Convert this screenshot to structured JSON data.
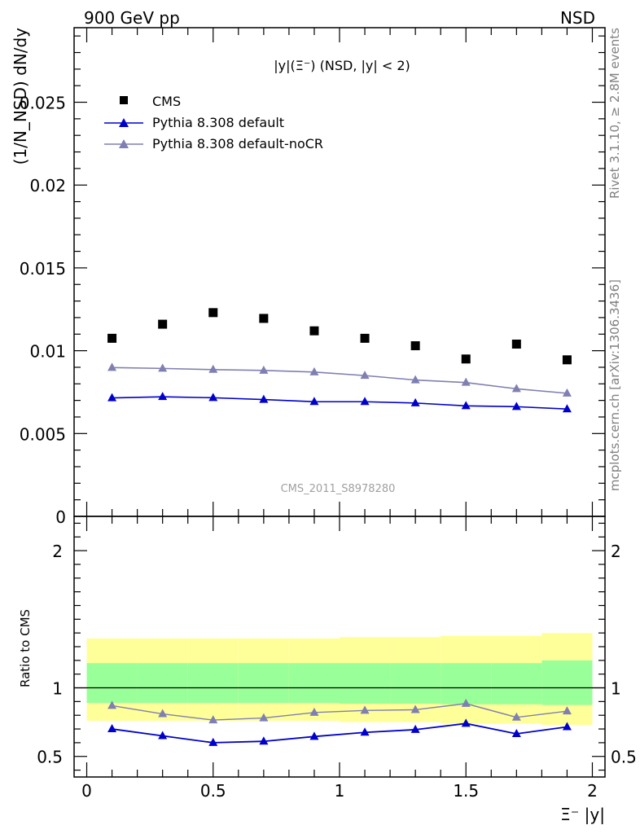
{
  "header": {
    "left": "900 GeV pp",
    "right": "NSD"
  },
  "side_text": {
    "rivet": "Rivet 3.1.10, ≥ 2.8M events",
    "mcplots": "mcplots.cern.ch [arXiv:1306.3436]"
  },
  "watermark": "CMS_2011_S8978280",
  "colors": {
    "cms": "#000000",
    "pythia_default": "#0000cc",
    "pythia_nocr": "#7f7fb2",
    "band_outer": "#ffff99",
    "band_inner": "#99ff99"
  },
  "chart_data": [
    {
      "type": "scatter",
      "title": "|y|(Ξ⁻) (NSD, |y| < 2)",
      "ylabel": "(1/N_NSD) dN/dy",
      "xlim": [
        -0.05,
        2.05
      ],
      "ylim": [
        0,
        0.0295
      ],
      "ytick_labels": [
        "0",
        "0.005",
        "0.01",
        "0.015",
        "0.02",
        "0.025"
      ],
      "x": [
        0.1,
        0.3,
        0.5,
        0.7,
        0.9,
        1.1,
        1.3,
        1.5,
        1.7,
        1.9
      ],
      "series": [
        {
          "name": "CMS",
          "marker": "square",
          "values": [
            0.01075,
            0.0116,
            0.0123,
            0.01195,
            0.0112,
            0.01075,
            0.0103,
            0.0095,
            0.0104,
            0.00945
          ]
        },
        {
          "name": "Pythia 8.308 default",
          "marker": "triangle",
          "values": [
            0.00715,
            0.00722,
            0.00716,
            0.00705,
            0.00692,
            0.00692,
            0.00684,
            0.00667,
            0.00662,
            0.00648
          ]
        },
        {
          "name": "Pythia 8.308 default-noCR",
          "marker": "triangle",
          "values": [
            0.00898,
            0.00893,
            0.00886,
            0.00881,
            0.00871,
            0.0085,
            0.00823,
            0.00808,
            0.0077,
            0.00743
          ]
        }
      ]
    },
    {
      "type": "line",
      "ylabel": "Ratio to CMS",
      "xlabel": "Ξ⁻ |y|",
      "xlim": [
        -0.05,
        2.05
      ],
      "ylim": [
        0.35,
        2.25
      ],
      "xtick_labels": [
        "0",
        "0.5",
        "1",
        "1.5",
        "2"
      ],
      "ytick_labels": [
        "0.5",
        "1",
        "2"
      ],
      "x": [
        0.1,
        0.3,
        0.5,
        0.7,
        0.9,
        1.1,
        1.3,
        1.5,
        1.7,
        1.9
      ],
      "bands": {
        "edges": [
          0.0,
          0.2,
          0.4,
          0.6,
          0.8,
          1.0,
          1.2,
          1.4,
          1.6,
          1.8,
          2.0
        ],
        "outer_low": [
          0.76,
          0.76,
          0.76,
          0.76,
          0.76,
          0.75,
          0.75,
          0.74,
          0.74,
          0.73
        ],
        "outer_high": [
          1.36,
          1.36,
          1.36,
          1.36,
          1.36,
          1.37,
          1.37,
          1.38,
          1.38,
          1.4
        ],
        "inner_low": [
          0.89,
          0.89,
          0.89,
          0.89,
          0.89,
          0.885,
          0.885,
          0.88,
          0.88,
          0.875
        ],
        "inner_high": [
          1.18,
          1.18,
          1.18,
          1.18,
          1.18,
          1.18,
          1.18,
          1.18,
          1.18,
          1.2
        ]
      },
      "series": [
        {
          "name": "Pythia 8.308 default",
          "values": [
            0.7,
            0.65,
            0.6,
            0.61,
            0.645,
            0.675,
            0.695,
            0.74,
            0.665,
            0.715
          ]
        },
        {
          "name": "Pythia 8.308 default-noCR",
          "values": [
            0.87,
            0.81,
            0.765,
            0.78,
            0.82,
            0.835,
            0.84,
            0.885,
            0.785,
            0.83
          ]
        }
      ]
    }
  ]
}
